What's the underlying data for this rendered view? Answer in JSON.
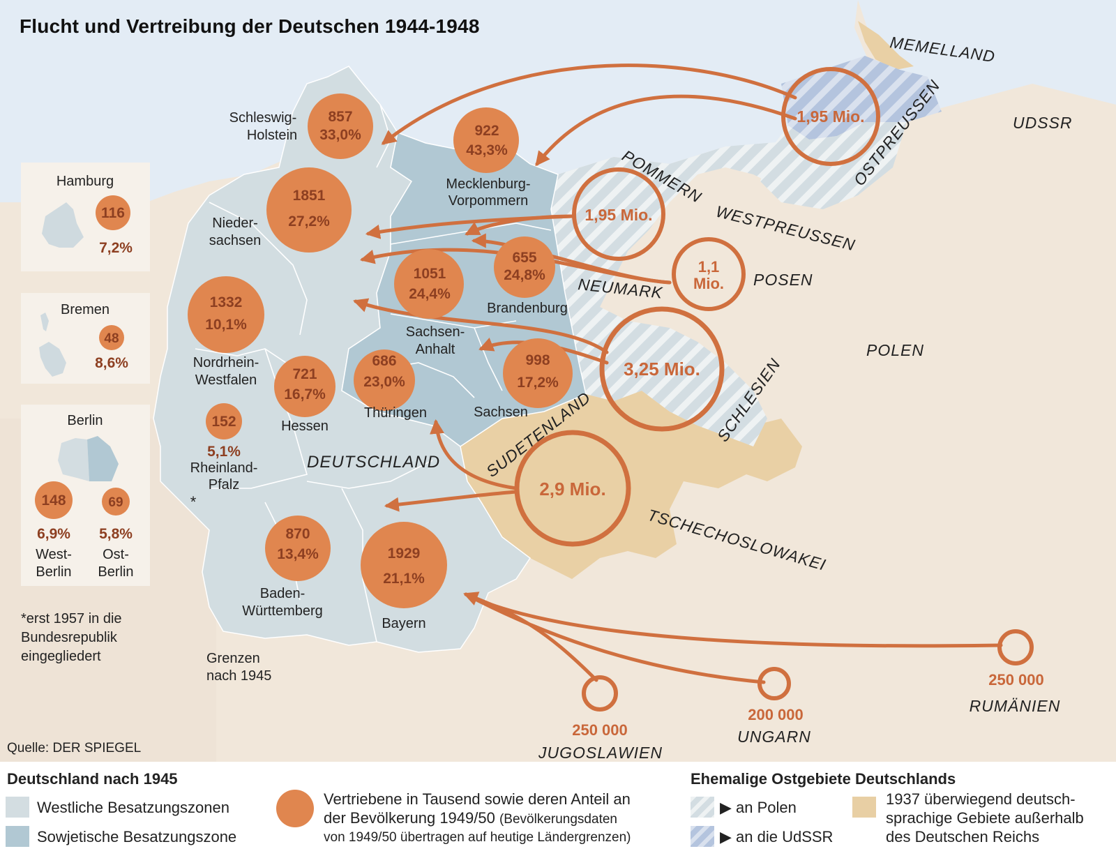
{
  "title": "Flucht und Vertreibung der Deutschen 1944-1948",
  "source": "Quelle: DER SPIEGEL",
  "footnote": [
    "*erst 1957 in die",
    "Bundesrepublik",
    "eingegliedert"
  ],
  "borders_label": [
    "Grenzen",
    "nach 1945"
  ],
  "country_label": "DEUTSCHLAND",
  "colors": {
    "sea": "#e3ecf5",
    "land": "#f2e8db",
    "western_zones": "#d3dde1",
    "soviet_zone": "#b3c9d3",
    "to_poland_hatch": "#cad5dd",
    "to_udssr_hatch": "#b6c6e0",
    "german_speaking": "#e8cfa4",
    "accent_orange": "#d97c4c",
    "circle_fill": "#e0864f",
    "text_brown": "#8d3f21"
  },
  "states": [
    {
      "name": [
        "Schleswig-",
        "Holstein"
      ],
      "value": "857",
      "share": "33,0%"
    },
    {
      "name": [
        "Mecklenburg-",
        "Vorpommern"
      ],
      "value": "922",
      "share": "43,3%"
    },
    {
      "name": [
        "Nieder-",
        "sachsen"
      ],
      "value": "1851",
      "share": "27,2%"
    },
    {
      "name": [
        "Nordrhein-",
        "Westfalen"
      ],
      "value": "1332",
      "share": "10,1%"
    },
    {
      "name": [
        "Sachsen-",
        "Anhalt"
      ],
      "value": "1051",
      "share": "24,4%"
    },
    {
      "name": [
        "Brandenburg"
      ],
      "value": "655",
      "share": "24,8%"
    },
    {
      "name": [
        "Hessen"
      ],
      "value": "721",
      "share": "16,7%"
    },
    {
      "name": [
        "Thüringen"
      ],
      "value": "686",
      "share": "23,0%"
    },
    {
      "name": [
        "Sachsen"
      ],
      "value": "998",
      "share": "17,2%"
    },
    {
      "name": [
        "Rheinland-",
        "Pfalz"
      ],
      "value": "152",
      "share": "5,1%",
      "marker": "*"
    },
    {
      "name": [
        "Baden-",
        "Württemberg"
      ],
      "value": "870",
      "share": "13,4%"
    },
    {
      "name": [
        "Bayern"
      ],
      "value": "1929",
      "share": "21,1%"
    }
  ],
  "city_states": [
    {
      "name": "Hamburg",
      "value": "116",
      "share": "7,2%"
    },
    {
      "name": "Bremen",
      "value": "48",
      "share": "8,6%"
    },
    {
      "name": "Berlin",
      "parts": [
        {
          "name": [
            "West-",
            "Berlin"
          ],
          "value": "148",
          "share": "6,9%"
        },
        {
          "name": [
            "Ost-",
            "Berlin"
          ],
          "value": "69",
          "share": "5,8%"
        }
      ]
    }
  ],
  "origins": [
    {
      "region": "OSTPREUSSEN",
      "amount": "1,95 Mio."
    },
    {
      "region": "POMMERN",
      "amount": "1,95 Mio."
    },
    {
      "region": "POSEN",
      "amount": "1,1 Mio."
    },
    {
      "region": "SCHLESIEN",
      "amount": "3,25 Mio."
    },
    {
      "region": "SUDETENLAND",
      "amount": "2,9 Mio."
    },
    {
      "region": "JUGOSLAWIEN",
      "amount": "250 000"
    },
    {
      "region": "UNGARN",
      "amount": "200 000"
    },
    {
      "region": "RUMÄNIEN",
      "amount": "250 000"
    }
  ],
  "region_labels": [
    "MEMELLAND",
    "UDSSR",
    "WESTPREUSSEN",
    "NEUMARK",
    "POLEN",
    "TSCHECHOSLOWAKEI"
  ],
  "legend": {
    "germany_heading": "Deutschland nach 1945",
    "western": "Westliche Besatzungszonen",
    "soviet": "Sowjetische Besatzungszone",
    "circle_text_1": "Vertriebene in Tausend sowie deren Anteil an",
    "circle_text_2": "der Bevölkerung 1949/50",
    "circle_text_2_small": "(Bevölkerungsdaten",
    "circle_text_3": "von 1949/50 übertragen auf heutige Ländergrenzen)",
    "east_heading": "Ehemalige Ostgebiete Deutschlands",
    "to_poland": "an Polen",
    "to_udssr": "an die UdSSR",
    "german_speaking": [
      "1937 überwiegend deutsch-",
      "sprachige Gebiete außerhalb",
      "des Deutschen Reichs"
    ]
  }
}
